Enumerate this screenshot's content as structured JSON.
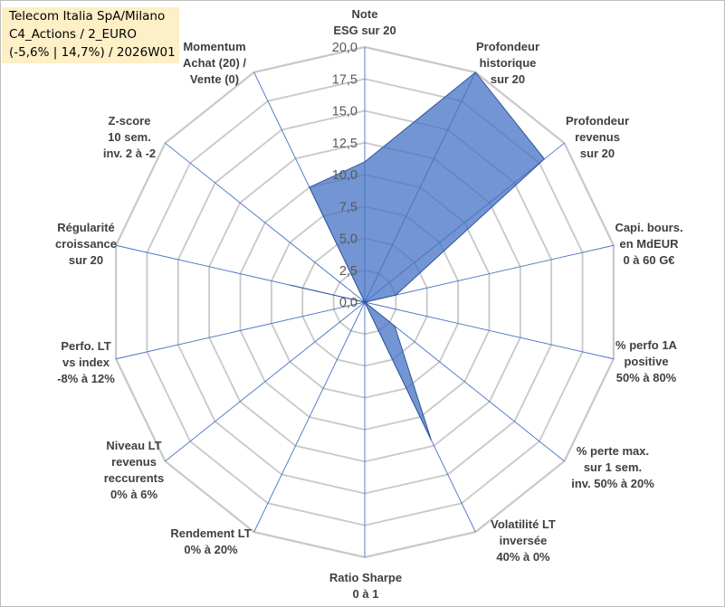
{
  "title_box": {
    "line1": "Telecom Italia SpA/Milano",
    "line2": "C4_Actions / 2_EURO",
    "line3": "(-5,6% | 14,7%) / 2026W01"
  },
  "colors": {
    "fill": "#4472c4",
    "stroke": "#2f5597",
    "grid": "#c8c8c8",
    "spoke": "#4472c4",
    "title_bg": "#fdefc6"
  },
  "chart_data": {
    "type": "radar",
    "title": "",
    "rmin": 0,
    "rmax": 20,
    "tick_step": 2.5,
    "tick_labels": [
      "0,0",
      "2,5",
      "5,0",
      "7,5",
      "10,0",
      "12,5",
      "15,0",
      "17,5",
      "20,0"
    ],
    "grid": true,
    "axes": [
      {
        "label": [
          "Note",
          "ESG sur 20"
        ],
        "value": 11.0
      },
      {
        "label": [
          "Profondeur",
          "historique",
          "sur 20"
        ],
        "value": 20.0
      },
      {
        "label": [
          "Profondeur",
          "revenus",
          "sur 20"
        ],
        "value": 18.0
      },
      {
        "label": [
          "Capi. bours.",
          "en MdEUR",
          "0 à 60 G€"
        ],
        "value": 2.5
      },
      {
        "label": [
          "% perfo 1A",
          "positive",
          "50% à 80%"
        ],
        "value": 0.0
      },
      {
        "label": [
          "% perte max.",
          "sur 1 sem.",
          "inv. 50% à 20%"
        ],
        "value": 3.0
      },
      {
        "label": [
          "Volatilité LT",
          "inversée",
          "40% à 0%"
        ],
        "value": 12.0
      },
      {
        "label": [
          "Ratio Sharpe",
          "0 à 1"
        ],
        "value": 0.0
      },
      {
        "label": [
          "Rendement LT",
          "0% à 20%"
        ],
        "value": 0.0
      },
      {
        "label": [
          "Niveau LT",
          "revenus",
          "reccurents",
          "0% à 6%"
        ],
        "value": 0.0
      },
      {
        "label": [
          "Perfo. LT",
          "vs index",
          "-8% à 12%"
        ],
        "value": 0.0
      },
      {
        "label": [
          "Régularité",
          "croissance",
          "sur 20"
        ],
        "value": 6.0
      },
      {
        "label": [
          "Z-score",
          "10 sem.",
          "inv. 2 à -2"
        ],
        "value": 0.0
      },
      {
        "label": [
          "Momentum",
          "Achat (20) /",
          "Vente (0)"
        ],
        "value": 10.0
      }
    ]
  }
}
